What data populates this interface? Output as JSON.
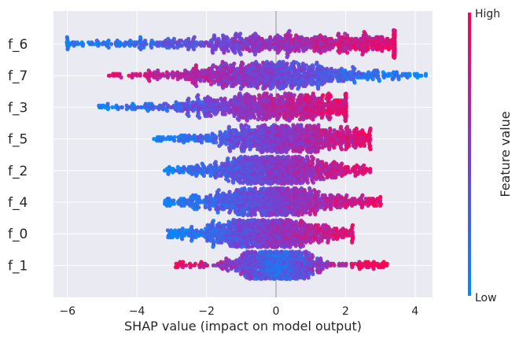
{
  "chart_data": {
    "type": "scatter",
    "subtype": "shap-beeswarm",
    "title": "",
    "xlabel": "SHAP value (impact on model output)",
    "ylabel": "",
    "xlim": [
      -6.4,
      4.5
    ],
    "xticks": [
      -6,
      -4,
      -2,
      0,
      2,
      4
    ],
    "xtick_labels": [
      "−6",
      "−4",
      "−2",
      "0",
      "2",
      "4"
    ],
    "features": [
      {
        "name": "f_6",
        "min": -6.0,
        "max": 3.4,
        "q": [
          -3.4,
          0.7,
          2.3
        ],
        "high_side": "right"
      },
      {
        "name": "f_7",
        "min": -4.8,
        "max": 4.3,
        "q": [
          -1.9,
          -0.2,
          1.0
        ],
        "high_side": "left"
      },
      {
        "name": "f_3",
        "min": -5.1,
        "max": 2.0,
        "q": [
          -1.8,
          0.0,
          1.3
        ],
        "high_side": "right"
      },
      {
        "name": "f_5",
        "min": -3.5,
        "max": 2.7,
        "q": [
          -1.1,
          0.4,
          1.3
        ],
        "high_side": "right"
      },
      {
        "name": "f_2",
        "min": -3.2,
        "max": 2.7,
        "q": [
          -0.9,
          0.0,
          1.2
        ],
        "high_side": "right"
      },
      {
        "name": "f_4",
        "min": -3.2,
        "max": 3.0,
        "q": [
          -1.2,
          0.0,
          1.1
        ],
        "high_side": "right"
      },
      {
        "name": "f_0",
        "min": -3.1,
        "max": 2.2,
        "q": [
          -1.2,
          -0.3,
          0.9
        ],
        "high_side": "right"
      },
      {
        "name": "f_1",
        "min": -2.9,
        "max": 3.2,
        "q": [
          -0.6,
          0.0,
          0.6
        ],
        "high_side": "mixed"
      }
    ],
    "colorbar": {
      "label": "Feature value",
      "high_label": "High",
      "low_label": "Low",
      "high_color": "#ff0052",
      "low_color": "#008bfb"
    },
    "background_color": "#eaeaf2",
    "grid": true
  }
}
